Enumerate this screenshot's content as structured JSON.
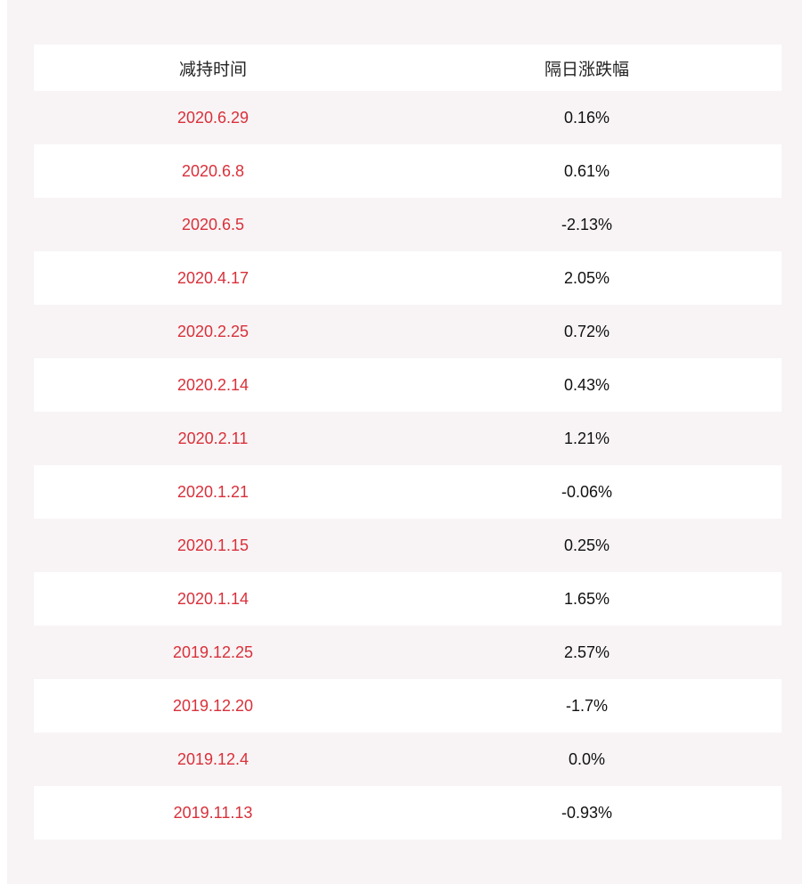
{
  "table": {
    "headers": [
      "减持时间",
      "隔日涨跌幅"
    ],
    "rows": [
      {
        "date": "2020.6.29",
        "change": "0.16%"
      },
      {
        "date": "2020.6.8",
        "change": "0.61%"
      },
      {
        "date": "2020.6.5",
        "change": "-2.13%"
      },
      {
        "date": "2020.4.17",
        "change": "2.05%"
      },
      {
        "date": "2020.2.25",
        "change": "0.72%"
      },
      {
        "date": "2020.2.14",
        "change": "0.43%"
      },
      {
        "date": "2020.2.11",
        "change": "1.21%"
      },
      {
        "date": "2020.1.21",
        "change": "-0.06%"
      },
      {
        "date": "2020.1.15",
        "change": "0.25%"
      },
      {
        "date": "2020.1.14",
        "change": "1.65%"
      },
      {
        "date": "2019.12.25",
        "change": "2.57%"
      },
      {
        "date": "2019.12.20",
        "change": "-1.7%"
      },
      {
        "date": "2019.12.4",
        "change": "0.0%"
      },
      {
        "date": "2019.11.13",
        "change": "-0.93%"
      }
    ]
  },
  "colors": {
    "background": "#f8f4f5",
    "date_text": "#d9303a",
    "value_text": "#111111"
  }
}
